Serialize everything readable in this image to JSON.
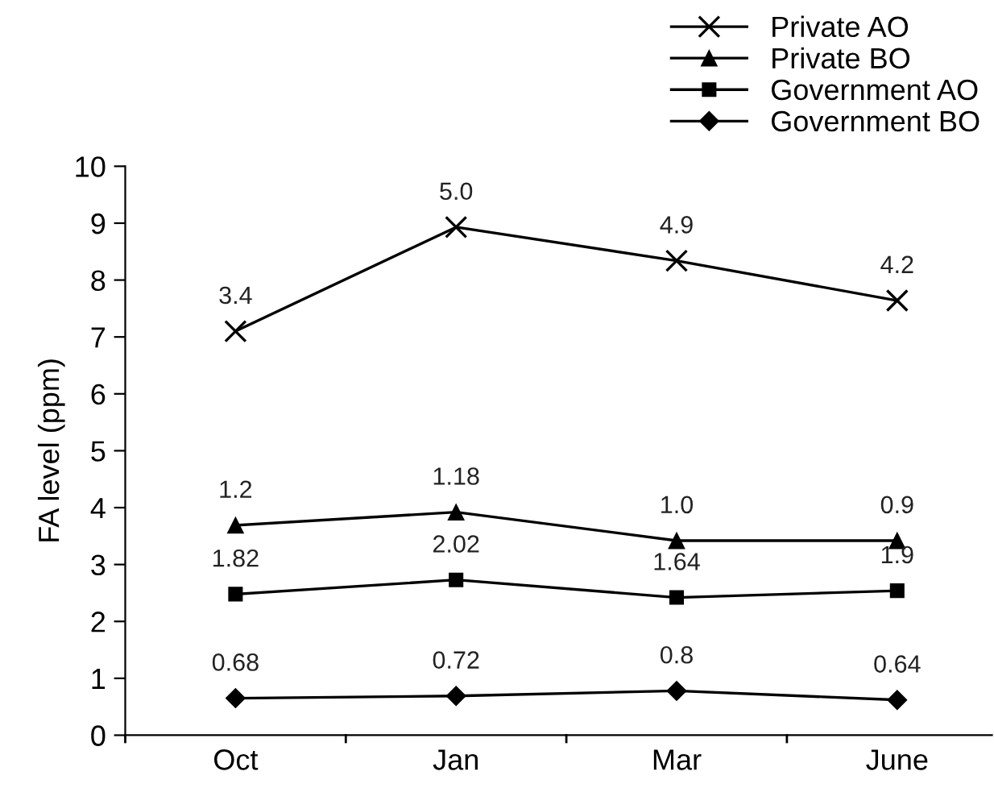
{
  "chart_data": {
    "type": "line",
    "ylabel": "FA level (ppm)",
    "categories": [
      "Oct",
      "Jan",
      "Mar",
      "June"
    ],
    "ylim": [
      0,
      10
    ],
    "yticks": [
      0,
      1,
      2,
      3,
      4,
      5,
      6,
      7,
      8,
      9,
      10
    ],
    "grid": false,
    "legend": "top right",
    "line_style": "solid",
    "series": [
      {
        "name": "Private AO",
        "color": "#000000",
        "marker": "cross",
        "values": [
          7.1,
          8.93,
          8.34,
          7.64
        ]
      },
      {
        "name": "Private BO",
        "color": "#000000",
        "marker": "triangle",
        "values": [
          3.69,
          3.92,
          3.42,
          3.42
        ]
      },
      {
        "name": "Government AO",
        "color": "#000000",
        "marker": "square",
        "values": [
          2.48,
          2.73,
          2.42,
          2.54
        ]
      },
      {
        "name": "Government BO",
        "color": "#000000",
        "marker": "diamond",
        "values": [
          0.65,
          0.69,
          0.78,
          0.62
        ]
      }
    ],
    "annotations": [
      {
        "text": "3.4",
        "x": "Oct",
        "y": 7.1
      },
      {
        "text": "5.0",
        "x": "Jan",
        "y": 8.93
      },
      {
        "text": "4.9",
        "x": "Mar",
        "y": 8.34
      },
      {
        "text": "4.2",
        "x": "June",
        "y": 7.64
      },
      {
        "text": "1.2",
        "x": "Oct",
        "y": 3.69
      },
      {
        "text": "1.18",
        "x": "Jan",
        "y": 3.92
      },
      {
        "text": "1.0",
        "x": "Mar",
        "y": 3.42
      },
      {
        "text": "0.9",
        "x": "June",
        "y": 3.42
      },
      {
        "text": "1.82",
        "x": "Oct",
        "y": 2.48
      },
      {
        "text": "2.02",
        "x": "Jan",
        "y": 2.73
      },
      {
        "text": "1.64",
        "x": "Mar",
        "y": 2.42
      },
      {
        "text": "1.9",
        "x": "June",
        "y": 2.54
      },
      {
        "text": "0.68",
        "x": "Oct",
        "y": 0.65
      },
      {
        "text": "0.72",
        "x": "Jan",
        "y": 0.69
      },
      {
        "text": "0.8",
        "x": "Mar",
        "y": 0.78
      },
      {
        "text": "0.64",
        "x": "June",
        "y": 0.62
      }
    ]
  }
}
